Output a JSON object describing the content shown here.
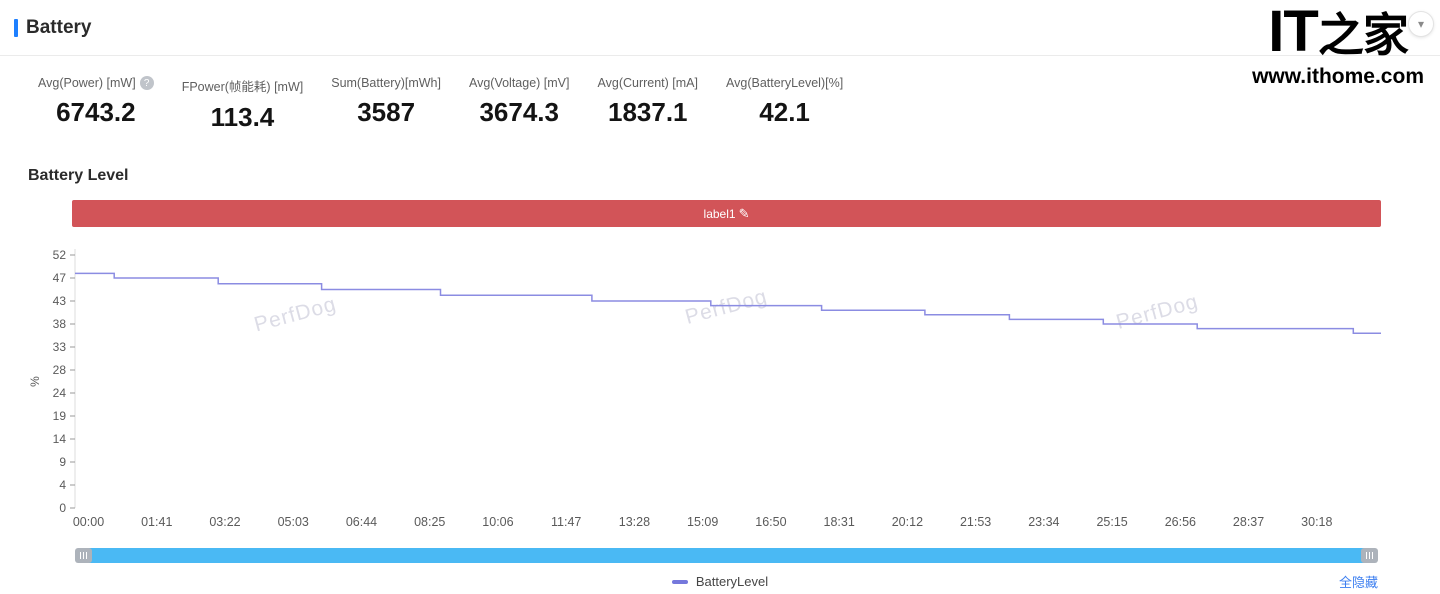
{
  "header": {
    "title": "Battery",
    "collapse_icon": "▾"
  },
  "watermark_logo": {
    "it": "IT",
    "zh": "之家",
    "url": "www.ithome.com"
  },
  "stats": {
    "items": [
      {
        "label": "Avg(Power) [mW]",
        "value": "6743.2",
        "help": "?"
      },
      {
        "label": "FPower(帧能耗) [mW]",
        "value": "113.4"
      },
      {
        "label": "Sum(Battery)[mWh]",
        "value": "3587"
      },
      {
        "label": "Avg(Voltage) [mV]",
        "value": "3674.3"
      },
      {
        "label": "Avg(Current) [mA]",
        "value": "1837.1"
      },
      {
        "label": "Avg(BatteryLevel)[%]",
        "value": "42.1"
      }
    ]
  },
  "section": {
    "title": "Battery Level"
  },
  "label_bar": {
    "text": "label1",
    "edit_icon": "✎",
    "color": "#d25458"
  },
  "chart_data": {
    "type": "line",
    "title": "Battery Level",
    "xlabel": "",
    "ylabel": "%",
    "ylim": [
      0,
      52
    ],
    "y_ticks": [
      0,
      4,
      9,
      14,
      19,
      24,
      28,
      33,
      38,
      43,
      47,
      52
    ],
    "x_ticks": [
      "00:00",
      "01:41",
      "03:22",
      "05:03",
      "06:44",
      "08:25",
      "10:06",
      "11:47",
      "13:28",
      "15:09",
      "16:50",
      "18:31",
      "20:12",
      "21:53",
      "23:34",
      "25:15",
      "26:56",
      "28:37",
      "30:18"
    ],
    "x_domain_seconds": [
      -20,
      1913
    ],
    "grid": false,
    "line_style": "step-after",
    "series": [
      {
        "name": "BatteryLevel",
        "color": "#8b8ce2",
        "points": [
          [
            0,
            48
          ],
          [
            38,
            47
          ],
          [
            192,
            46
          ],
          [
            345,
            45
          ],
          [
            521,
            44
          ],
          [
            745,
            43
          ],
          [
            921,
            42
          ],
          [
            1085,
            41
          ],
          [
            1238,
            40
          ],
          [
            1363,
            39
          ],
          [
            1502,
            38
          ],
          [
            1641,
            37
          ],
          [
            1872,
            36
          ]
        ]
      }
    ],
    "watermark": {
      "text": "PerfDog",
      "color": "#dcdce6",
      "rotate_deg": -15,
      "positions_frac": [
        [
          0.17,
          0.26
        ],
        [
          0.5,
          0.23
        ],
        [
          0.83,
          0.25
        ]
      ]
    },
    "legend_position": "bottom"
  },
  "scrollbar": {
    "color": "#4ab9f4"
  },
  "footer": {
    "legend": [
      {
        "name": "BatteryLevel",
        "color": "#7578dc"
      }
    ],
    "hide_all_label": "全隐藏"
  }
}
